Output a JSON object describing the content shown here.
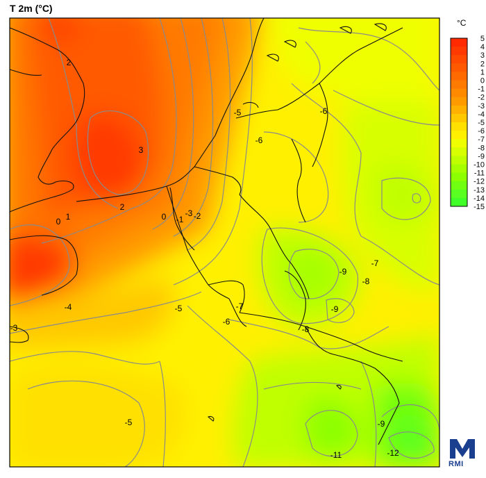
{
  "title": "T 2m (°C)",
  "legend": {
    "unit": "°C",
    "levels": [
      5,
      4,
      3,
      2,
      1,
      0,
      -1,
      -2,
      -3,
      -4,
      -5,
      -6,
      -7,
      -8,
      -9,
      -10,
      -11,
      -12,
      -13,
      -14,
      -15
    ],
    "colors": {
      "5": "#ff2a00",
      "4": "#ff3a00",
      "3": "#ff4a00",
      "2": "#ff5a00",
      "1": "#ff6a00",
      "0": "#ff7a00",
      "-1": "#ff8a00",
      "-2": "#ff9a00",
      "-3": "#ffb000",
      "-4": "#ffc800",
      "-5": "#ffe000",
      "-6": "#fff000",
      "-7": "#f0ff00",
      "-8": "#d8ff00",
      "-9": "#c0ff00",
      "-10": "#a6ff00",
      "-11": "#8cff00",
      "-12": "#70ff10",
      "-13": "#58ff20",
      "-14": "#40ff28",
      "-15": "#28ff30"
    }
  },
  "contour_labels": [
    {
      "text": "2",
      "value": 2
    },
    {
      "text": "3",
      "value": 3
    },
    {
      "text": "0",
      "value": 0
    },
    {
      "text": "1",
      "value": 1
    },
    {
      "text": "2",
      "value": 2
    },
    {
      "text": "0",
      "value": 0
    },
    {
      "text": "-1",
      "value": -1
    },
    {
      "text": "-2",
      "value": -2
    },
    {
      "text": "-3",
      "value": -3
    },
    {
      "text": "-5",
      "value": -5
    },
    {
      "text": "-6",
      "value": -6
    },
    {
      "text": "-6",
      "value": -6
    },
    {
      "text": "-4",
      "value": -4
    },
    {
      "text": "-3",
      "value": -3
    },
    {
      "text": "-5",
      "value": -5
    },
    {
      "text": "-6",
      "value": -6
    },
    {
      "text": "-7",
      "value": -7
    },
    {
      "text": "-9",
      "value": -9
    },
    {
      "text": "-8",
      "value": -8
    },
    {
      "text": "-7",
      "value": -7
    },
    {
      "text": "-9",
      "value": -9
    },
    {
      "text": "-8",
      "value": -8
    },
    {
      "text": "-5",
      "value": -5
    },
    {
      "text": "-9",
      "value": -9
    },
    {
      "text": "-11",
      "value": -11
    },
    {
      "text": "-12",
      "value": -12
    }
  ],
  "logo": {
    "text": "RMI"
  }
}
